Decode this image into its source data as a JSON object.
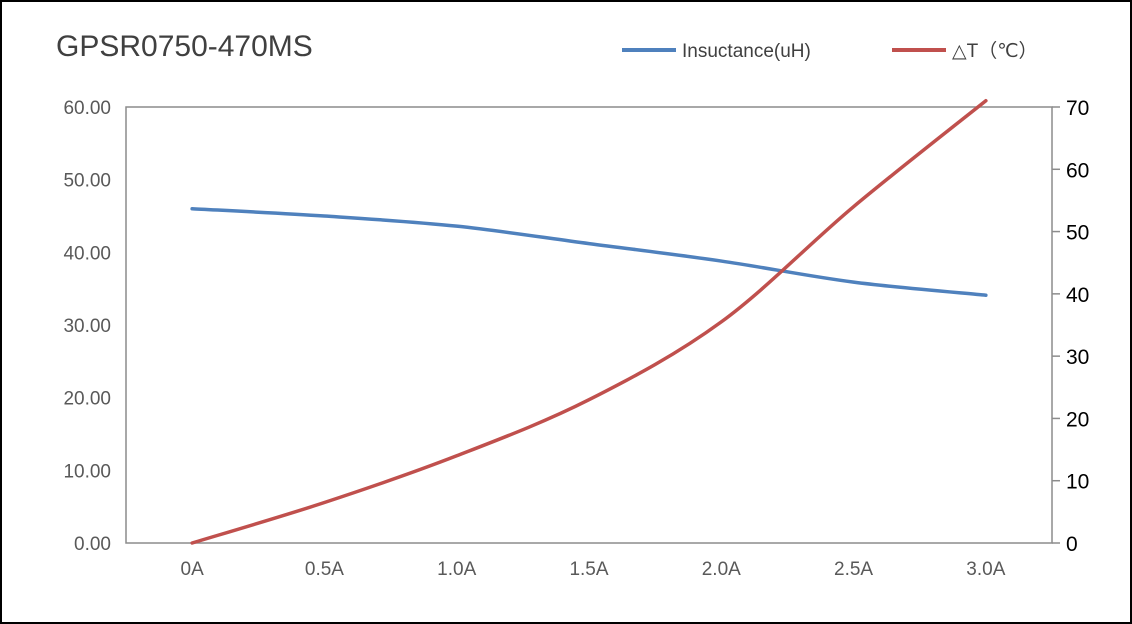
{
  "chart_data": {
    "type": "line",
    "title": "GPSR0750-470MS",
    "xlabel": "",
    "ylabel": "",
    "y2label": "",
    "categories": [
      "0A",
      "0.5A",
      "1.0A",
      "1.5A",
      "2.0A",
      "2.5A",
      "3.0A"
    ],
    "series": [
      {
        "name": "Insuctance(uH)",
        "axis": "left",
        "color": "#4F81BD",
        "values": [
          46.0,
          45.0,
          43.6,
          41.2,
          38.8,
          35.9,
          34.1
        ]
      },
      {
        "name": "△T（℃）",
        "axis": "right",
        "color": "#C0504D",
        "values": [
          0,
          6.5,
          14,
          23,
          35.5,
          54,
          71
        ]
      }
    ],
    "ylim": [
      0,
      60
    ],
    "y_ticks": [
      "0.00",
      "10.00",
      "20.00",
      "30.00",
      "40.00",
      "50.00",
      "60.00"
    ],
    "y2lim": [
      0,
      70
    ],
    "y2_ticks": [
      "0",
      "10",
      "20",
      "30",
      "40",
      "50",
      "60",
      "70"
    ],
    "legend_position": "top-right",
    "grid": false
  }
}
